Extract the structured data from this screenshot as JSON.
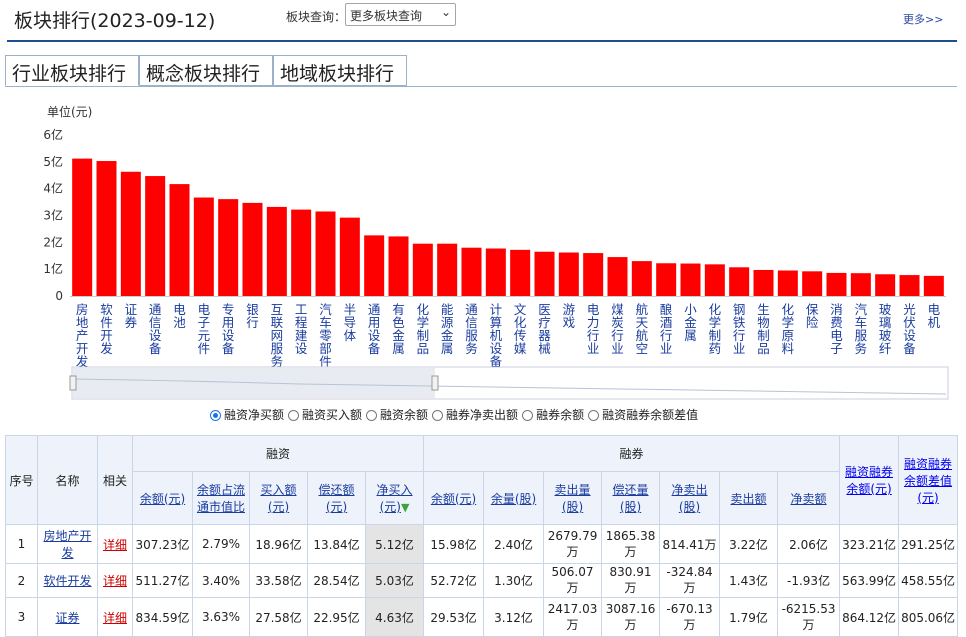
{
  "header": {
    "title": "板块排行(2023-09-12)",
    "query_label": "板块查询：",
    "query_select": "更多板块查询",
    "more_link": "更多>>"
  },
  "tabs": [
    {
      "label": "行业板块排行",
      "active": true
    },
    {
      "label": "概念板块排行",
      "active": false
    },
    {
      "label": "地域板块排行",
      "active": false
    }
  ],
  "chart_data": {
    "type": "bar",
    "ylabel": "单位(元)",
    "ylim": [
      0,
      6
    ],
    "yticks": [
      "0",
      "1亿",
      "2亿",
      "3亿",
      "4亿",
      "5亿",
      "6亿"
    ],
    "bar_color": "#ff0000",
    "categories": [
      "房地产开发",
      "软件开发",
      "证券",
      "通信设备",
      "电池",
      "电子元件",
      "专用设备",
      "银行",
      "互联网服务",
      "工程建设",
      "汽车零部件",
      "半导体",
      "通用设备",
      "有色金属",
      "化学制品",
      "能源金属",
      "通信服务",
      "计算机设备",
      "文化传媒",
      "医疗器械",
      "游戏",
      "电力行业",
      "煤炭行业",
      "航天航空",
      "酿酒行业",
      "小金属",
      "化学制药",
      "钢铁行业",
      "生物制品",
      "化学原料",
      "保险",
      "消费电子",
      "汽车服务",
      "玻璃玻纤",
      "光伏设备",
      "电机"
    ],
    "values": [
      5.12,
      5.03,
      4.63,
      4.47,
      4.17,
      3.67,
      3.61,
      3.47,
      3.32,
      3.22,
      3.15,
      2.92,
      2.26,
      2.22,
      1.95,
      1.95,
      1.8,
      1.77,
      1.72,
      1.65,
      1.62,
      1.6,
      1.45,
      1.3,
      1.22,
      1.21,
      1.18,
      1.07,
      0.97,
      0.95,
      0.92,
      0.86,
      0.85,
      0.81,
      0.78,
      0.75
    ]
  },
  "radio_options": [
    {
      "label": "融资净买额",
      "checked": true
    },
    {
      "label": "融资买入额",
      "checked": false
    },
    {
      "label": "融资余额",
      "checked": false
    },
    {
      "label": "融券净卖出额",
      "checked": false
    },
    {
      "label": "融券余额",
      "checked": false
    },
    {
      "label": "融资融券余额差值",
      "checked": false
    }
  ],
  "table": {
    "col_index": "序号",
    "col_name": "名称",
    "col_related": "相关",
    "group_margin": "融资",
    "group_short": "融券",
    "col_total": "融资融券余额(元)",
    "col_diff": "融资融券余额差值(元)",
    "margin_cols": [
      "余额(元)",
      "余额占流通市值比",
      "买入额(元)",
      "偿还额(元)",
      "净买入(元)"
    ],
    "short_cols": [
      "余额(元)",
      "余量(股)",
      "卖出量(股)",
      "偿还量(股)",
      "净卖出(股)",
      "卖出额",
      "净卖额"
    ],
    "rows": [
      {
        "idx": "1",
        "name": "房地产开发",
        "detail": "详细",
        "m_bal": "307.23亿",
        "m_ratio": "2.79%",
        "m_buy": "18.96亿",
        "m_repay": "13.84亿",
        "m_net": "5.12亿",
        "s_bal": "15.98亿",
        "s_qty": "2.40亿",
        "s_sell_qty": "2679.79万",
        "s_repay_qty": "1865.38万",
        "s_net_qty": "814.41万",
        "s_sell_amt": "3.22亿",
        "s_net_amt": "2.06亿",
        "total": "323.21亿",
        "diff": "291.25亿"
      },
      {
        "idx": "2",
        "name": "软件开发",
        "detail": "详细",
        "m_bal": "511.27亿",
        "m_ratio": "3.40%",
        "m_buy": "33.58亿",
        "m_repay": "28.54亿",
        "m_net": "5.03亿",
        "s_bal": "52.72亿",
        "s_qty": "1.30亿",
        "s_sell_qty": "506.07万",
        "s_repay_qty": "830.91万",
        "s_net_qty": "-324.84万",
        "s_sell_amt": "1.43亿",
        "s_net_amt": "-1.93亿",
        "total": "563.99亿",
        "diff": "458.55亿"
      },
      {
        "idx": "3",
        "name": "证券",
        "detail": "详细",
        "m_bal": "834.59亿",
        "m_ratio": "3.63%",
        "m_buy": "27.58亿",
        "m_repay": "22.95亿",
        "m_net": "4.63亿",
        "s_bal": "29.53亿",
        "s_qty": "3.12亿",
        "s_sell_qty": "2417.03万",
        "s_repay_qty": "3087.16万",
        "s_net_qty": "-670.13万",
        "s_sell_amt": "1.79亿",
        "s_net_amt": "-6215.53万",
        "total": "864.12亿",
        "diff": "805.06亿"
      }
    ]
  }
}
